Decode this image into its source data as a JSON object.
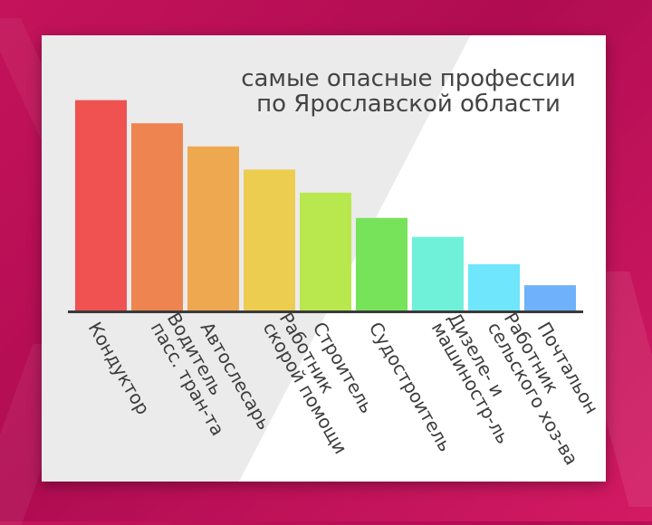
{
  "chart_data": {
    "type": "bar",
    "title_lines": [
      "самые опасные профессии",
      "по Ярославской области"
    ],
    "categories": [
      [
        "Кондуктор"
      ],
      [
        "Водитель",
        "пасс. тран-та"
      ],
      [
        "Автослесарь"
      ],
      [
        "Работник",
        "скорой помощи"
      ],
      [
        "Строитель"
      ],
      [
        "Судостроитель"
      ],
      [
        "Дизеле- и",
        "машиностр-ль"
      ],
      [
        "Работник",
        "сельского хоз-ва"
      ],
      [
        "Почтальон"
      ]
    ],
    "values": [
      100,
      89,
      78,
      67,
      56,
      44,
      35,
      22,
      12
    ],
    "colors": [
      "#ef5250",
      "#ee8450",
      "#eea850",
      "#eccd50",
      "#b8e84e",
      "#76e35a",
      "#6ff1d9",
      "#6fe6fb",
      "#6fb1fa"
    ],
    "ylim": [
      0,
      105
    ],
    "grid": false,
    "legend": "none"
  }
}
